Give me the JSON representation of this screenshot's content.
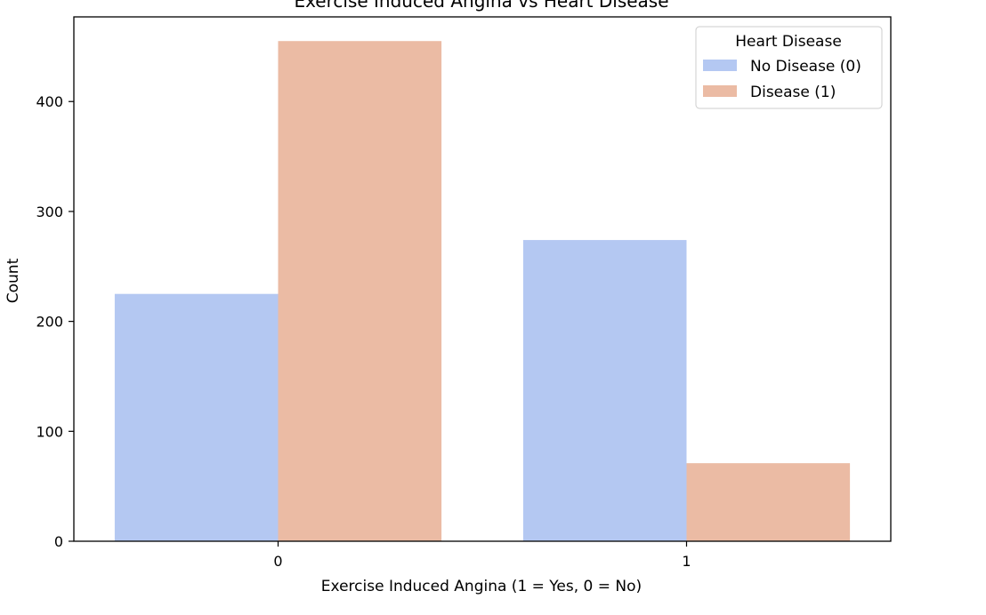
{
  "chart_data": {
    "type": "bar",
    "title": "Exercise Induced Angina vs Heart Disease",
    "xlabel": "Exercise Induced Angina (1 = Yes, 0 = No)",
    "ylabel": "Count",
    "categories": [
      "0",
      "1"
    ],
    "series": [
      {
        "name": "No Disease (0)",
        "values": [
          225,
          274
        ],
        "color": "#b4c8f2"
      },
      {
        "name": "Disease (1)",
        "values": [
          455,
          71
        ],
        "color": "#ebbba4"
      }
    ],
    "yticks": [
      0,
      100,
      200,
      300,
      400
    ],
    "ylim": [
      0,
      477
    ],
    "grid": false,
    "legend": {
      "title": "Heart Disease",
      "placement": "top-right"
    }
  }
}
